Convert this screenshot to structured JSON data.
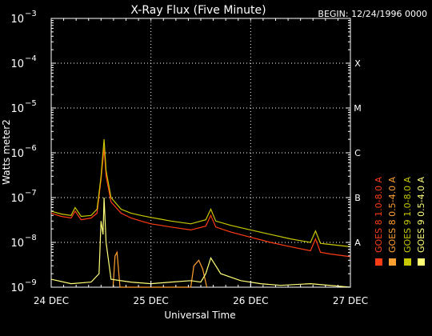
{
  "chart_data": {
    "type": "line",
    "title": "X-Ray Flux (Five Minute)",
    "begin_label": "BEGIN: 12/24/1996 0000",
    "xlabel": "Universal Time",
    "ylabel": "Watts meter2",
    "x_ticks": [
      {
        "day": 0,
        "label": "24 DEC"
      },
      {
        "day": 1,
        "label": "25 DEC"
      },
      {
        "day": 2,
        "label": "26 DEC"
      },
      {
        "day": 3,
        "label": "27 DEC"
      }
    ],
    "xlim": [
      0,
      3
    ],
    "y_scale": "log",
    "ylim": [
      1e-09,
      0.001
    ],
    "y_ticks": [
      {
        "value": 1e-09,
        "base": "10",
        "exp": "−9"
      },
      {
        "value": 1e-08,
        "base": "10",
        "exp": "−8"
      },
      {
        "value": 1e-07,
        "base": "10",
        "exp": "−7"
      },
      {
        "value": 1e-06,
        "base": "10",
        "exp": "−6"
      },
      {
        "value": 1e-05,
        "base": "10",
        "exp": "−5"
      },
      {
        "value": 0.0001,
        "base": "10",
        "exp": "−4"
      },
      {
        "value": 0.001,
        "base": "10",
        "exp": "−3"
      }
    ],
    "flare_classes": [
      {
        "value": 1e-08,
        "label": "A"
      },
      {
        "value": 1e-07,
        "label": "B"
      },
      {
        "value": 1e-06,
        "label": "C"
      },
      {
        "value": 1e-05,
        "label": "M"
      },
      {
        "value": 0.0001,
        "label": "X"
      }
    ],
    "grid": {
      "horizontal_dotted": true,
      "vertical_dotted_at_days": [
        1,
        2
      ]
    },
    "legend_placement": "right",
    "series": [
      {
        "name": "GOES 8 1.0-8.0 A",
        "color": "#ff3c14",
        "points": [
          [
            0.0,
            4.5e-08
          ],
          [
            0.1,
            3.8e-08
          ],
          [
            0.2,
            3.5e-08
          ],
          [
            0.24,
            5e-08
          ],
          [
            0.3,
            3.2e-08
          ],
          [
            0.4,
            3.5e-08
          ],
          [
            0.46,
            4.5e-08
          ],
          [
            0.5,
            2.5e-07
          ],
          [
            0.53,
            1.3e-06
          ],
          [
            0.55,
            3e-07
          ],
          [
            0.6,
            8e-08
          ],
          [
            0.7,
            4.5e-08
          ],
          [
            0.8,
            3.5e-08
          ],
          [
            0.9,
            3e-08
          ],
          [
            1.0,
            2.6e-08
          ],
          [
            1.1,
            2.4e-08
          ],
          [
            1.2,
            2.2e-08
          ],
          [
            1.4,
            1.9e-08
          ],
          [
            1.55,
            2.3e-08
          ],
          [
            1.6,
            4e-08
          ],
          [
            1.65,
            2.2e-08
          ],
          [
            1.8,
            1.7e-08
          ],
          [
            2.0,
            1.3e-08
          ],
          [
            2.2,
            1e-08
          ],
          [
            2.4,
            8e-09
          ],
          [
            2.6,
            6.5e-09
          ],
          [
            2.65,
            1.2e-08
          ],
          [
            2.7,
            6e-09
          ],
          [
            2.8,
            5.5e-09
          ],
          [
            3.0,
            4.8e-09
          ]
        ]
      },
      {
        "name": "GOES 8 0.5-4.0 A",
        "color": "#ffa030",
        "points": [
          [
            0.62,
            1e-09
          ],
          [
            0.64,
            5e-09
          ],
          [
            0.66,
            6e-09
          ],
          [
            0.69,
            1e-09
          ],
          [
            1.4,
            1e-09
          ],
          [
            1.43,
            3e-09
          ],
          [
            1.48,
            4e-09
          ],
          [
            1.52,
            2.5e-09
          ],
          [
            1.56,
            1e-09
          ]
        ]
      },
      {
        "name": "GOES 9 1.0-8.0 A",
        "color": "#c8c800",
        "points": [
          [
            0.0,
            5e-08
          ],
          [
            0.1,
            4.3e-08
          ],
          [
            0.2,
            4e-08
          ],
          [
            0.24,
            6e-08
          ],
          [
            0.3,
            3.8e-08
          ],
          [
            0.4,
            4e-08
          ],
          [
            0.46,
            5.5e-08
          ],
          [
            0.5,
            3e-07
          ],
          [
            0.53,
            2e-06
          ],
          [
            0.55,
            4e-07
          ],
          [
            0.6,
            1e-07
          ],
          [
            0.7,
            5.5e-08
          ],
          [
            0.8,
            4.5e-08
          ],
          [
            0.9,
            4e-08
          ],
          [
            1.0,
            3.6e-08
          ],
          [
            1.1,
            3.3e-08
          ],
          [
            1.2,
            3e-08
          ],
          [
            1.4,
            2.6e-08
          ],
          [
            1.55,
            3.2e-08
          ],
          [
            1.6,
            5.5e-08
          ],
          [
            1.65,
            3e-08
          ],
          [
            1.8,
            2.4e-08
          ],
          [
            2.0,
            1.9e-08
          ],
          [
            2.2,
            1.5e-08
          ],
          [
            2.4,
            1.2e-08
          ],
          [
            2.6,
            1e-08
          ],
          [
            2.65,
            1.8e-08
          ],
          [
            2.7,
            9.5e-09
          ],
          [
            2.8,
            9e-09
          ],
          [
            3.0,
            8e-09
          ]
        ]
      },
      {
        "name": "GOES 9 0.5-4.0 A",
        "color": "#ffff78",
        "points": [
          [
            0.0,
            1.5e-09
          ],
          [
            0.2,
            1.2e-09
          ],
          [
            0.4,
            1.3e-09
          ],
          [
            0.48,
            2e-09
          ],
          [
            0.5,
            3e-08
          ],
          [
            0.52,
            1.5e-08
          ],
          [
            0.53,
            1e-07
          ],
          [
            0.55,
            1e-08
          ],
          [
            0.6,
            1.5e-09
          ],
          [
            0.8,
            1.3e-09
          ],
          [
            1.0,
            1.2e-09
          ],
          [
            1.2,
            1.3e-09
          ],
          [
            1.4,
            1.4e-09
          ],
          [
            1.5,
            1.3e-09
          ],
          [
            1.55,
            2e-09
          ],
          [
            1.6,
            4.5e-09
          ],
          [
            1.7,
            2e-09
          ],
          [
            1.9,
            1.4e-09
          ],
          [
            2.1,
            1.2e-09
          ],
          [
            2.3,
            1.1e-09
          ],
          [
            2.6,
            1.2e-09
          ],
          [
            3.0,
            1e-09
          ]
        ]
      }
    ]
  }
}
